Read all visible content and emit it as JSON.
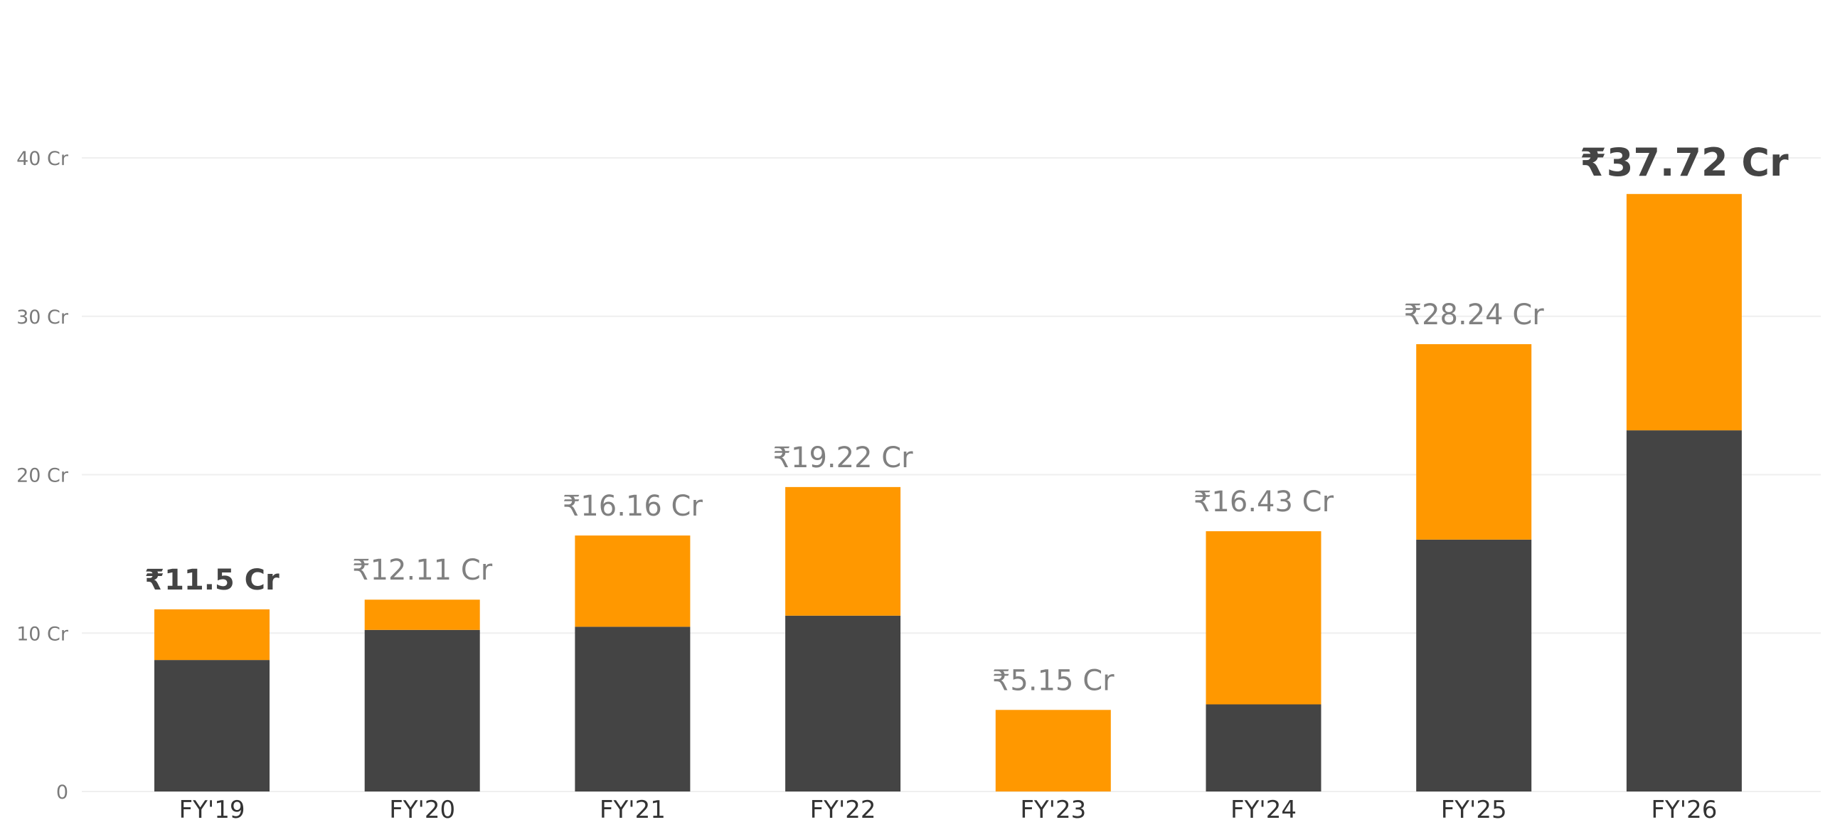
{
  "chart_data": {
    "type": "bar",
    "stacked": true,
    "categories": [
      "FY'19",
      "FY'20",
      "FY'21",
      "FY'22",
      "FY'23",
      "FY'24",
      "FY'25",
      "FY'26"
    ],
    "series": [
      {
        "color": "#444444",
        "values": [
          8.3,
          10.2,
          10.4,
          11.1,
          0,
          5.5,
          15.9,
          22.8
        ]
      },
      {
        "color": "#FF9800",
        "values": [
          3.2,
          1.91,
          5.76,
          8.12,
          5.15,
          10.93,
          12.34,
          14.92
        ]
      }
    ],
    "totals": [
      11.5,
      12.11,
      16.16,
      19.22,
      5.15,
      16.43,
      28.24,
      37.72
    ],
    "total_labels": [
      "₹11.5 Cr",
      "₹12.11 Cr",
      "₹16.16 Cr",
      "₹19.22 Cr",
      "₹5.15 Cr",
      "₹16.43 Cr",
      "₹28.24 Cr",
      "₹37.72 Cr"
    ],
    "emphasized": [
      "FY'19",
      "FY'26"
    ],
    "ylim": [
      0,
      40
    ],
    "yticks": [
      0,
      10,
      20,
      30,
      40
    ],
    "ytick_labels": [
      "0",
      "10 Cr",
      "20 Cr",
      "30 Cr",
      "40 Cr"
    ],
    "grid": true,
    "legend": "none"
  }
}
